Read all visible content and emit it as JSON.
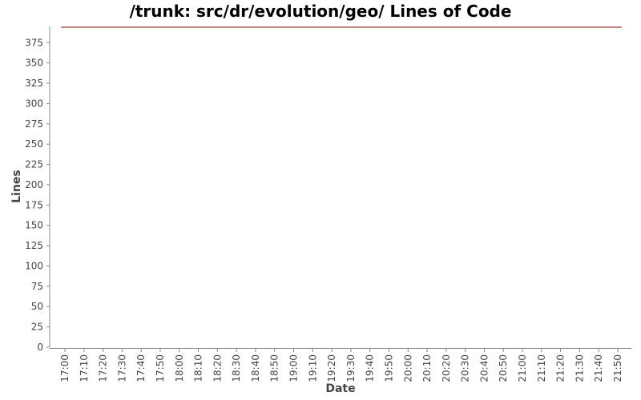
{
  "chart_data": {
    "type": "line",
    "title": "/trunk: src/dr/evolution/geo/ Lines of Code",
    "xlabel": "Date",
    "ylabel": "Lines",
    "x_ticks": [
      "17:00",
      "17:10",
      "17:20",
      "17:30",
      "17:40",
      "17:50",
      "18:00",
      "18:10",
      "18:20",
      "18:30",
      "18:40",
      "18:50",
      "19:00",
      "19:10",
      "19:20",
      "19:30",
      "19:40",
      "19:50",
      "20:00",
      "20:10",
      "20:20",
      "20:30",
      "20:40",
      "20:50",
      "21:00",
      "21:10",
      "21:20",
      "21:30",
      "21:40",
      "21:50"
    ],
    "y_ticks": [
      0,
      25,
      50,
      75,
      100,
      125,
      150,
      175,
      200,
      225,
      250,
      275,
      300,
      325,
      350,
      375
    ],
    "ylim": [
      0,
      395
    ],
    "grid": false,
    "series": [
      {
        "color": "#8b0000",
        "points": [
          {
            "x": "16:58",
            "y": 394
          },
          {
            "x": "21:52",
            "y": 394
          }
        ]
      }
    ]
  }
}
